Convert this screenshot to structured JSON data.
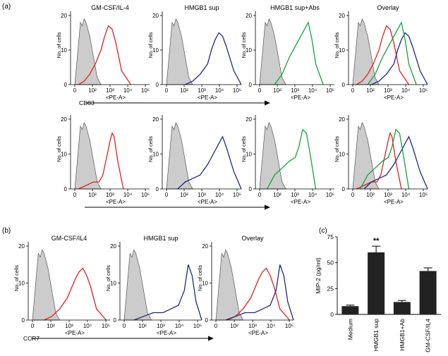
{
  "panel_labels": {
    "a": "(a)",
    "b": "(b)",
    "c": "(c)"
  },
  "colors": {
    "medium": "#e0211f",
    "hmgb1": "#22287a",
    "abs": "#16a23a",
    "control_fill": "#cccccc",
    "control_line": "#555555",
    "bar": "#222222"
  },
  "chart_data": [
    {
      "type": "area",
      "panel": "a-top",
      "xlabel": "<PE-A>",
      "marker": "CD83",
      "xscale": "log",
      "xticks": [
        "0",
        "10²",
        "10³",
        "10⁴",
        "10⁵"
      ],
      "ylabel": "No. of cells",
      "ylim": [
        0,
        20
      ],
      "yticks": [
        "0",
        "10",
        "20"
      ],
      "histograms": [
        {
          "title": "GM-CSF/IL-4",
          "series": [
            {
              "color": "#e0211f",
              "log_x": [
                1.2,
                1.5,
                1.8,
                2.1,
                2.4,
                2.6,
                2.8,
                3.0,
                3.2,
                3.5,
                4.0
              ],
              "counts": [
                0,
                1,
                3,
                6,
                10,
                14,
                17,
                16,
                12,
                4,
                0
              ]
            }
          ]
        },
        {
          "title": "HMGB1 sup",
          "series": [
            {
              "color": "#22287a",
              "log_x": [
                2.0,
                2.4,
                2.8,
                3.2,
                3.4,
                3.6,
                3.8,
                4.0,
                4.2,
                4.6,
                5.0
              ],
              "counts": [
                0,
                1,
                3,
                6,
                10,
                13,
                15,
                14,
                11,
                4,
                0
              ]
            }
          ]
        },
        {
          "title": "HMGB1 sup+Abs",
          "series": [
            {
              "color": "#16a23a",
              "log_x": [
                1.8,
                2.2,
                2.6,
                3.0,
                3.2,
                3.4,
                3.6,
                3.8,
                4.0,
                4.4
              ],
              "counts": [
                0,
                3,
                8,
                12,
                14,
                16,
                18,
                13,
                6,
                0
              ]
            }
          ]
        },
        {
          "title": "Overlay",
          "series": [
            {
              "color": "#e0211f",
              "log_x": [
                1.2,
                1.5,
                1.8,
                2.1,
                2.4,
                2.6,
                2.8,
                3.0,
                3.2,
                3.5,
                4.0
              ],
              "counts": [
                0,
                1,
                3,
                6,
                10,
                14,
                17,
                16,
                12,
                4,
                0
              ]
            },
            {
              "color": "#22287a",
              "log_x": [
                2.0,
                2.4,
                2.8,
                3.2,
                3.4,
                3.6,
                3.8,
                4.0,
                4.2,
                4.6,
                5.0
              ],
              "counts": [
                0,
                1,
                3,
                6,
                10,
                13,
                15,
                14,
                11,
                4,
                0
              ]
            },
            {
              "color": "#16a23a",
              "log_x": [
                1.8,
                2.2,
                2.6,
                3.0,
                3.2,
                3.4,
                3.6,
                3.8,
                4.0,
                4.4
              ],
              "counts": [
                0,
                3,
                8,
                12,
                14,
                16,
                18,
                13,
                6,
                0
              ]
            }
          ]
        }
      ]
    },
    {
      "type": "area",
      "panel": "a-bottom",
      "xlabel": "<PE-A>",
      "xscale": "log",
      "xticks": [
        "0",
        "10²",
        "10³",
        "10⁴",
        "10⁵"
      ],
      "ylabel": "No. of cells",
      "ylim": [
        0,
        20
      ],
      "yticks": [
        "0",
        "10",
        "20"
      ],
      "histograms": [
        {
          "title": "",
          "series": [
            {
              "color": "#e0211f",
              "log_x": [
                1.2,
                1.6,
                2.0,
                2.3,
                2.5,
                2.7,
                2.9,
                3.0,
                3.1,
                3.3,
                3.6
              ],
              "counts": [
                0,
                1,
                2,
                2,
                4,
                9,
                14,
                16,
                15,
                8,
                0
              ]
            }
          ]
        },
        {
          "title": "",
          "series": [
            {
              "color": "#22287a",
              "log_x": [
                1.6,
                2.0,
                2.4,
                2.8,
                3.2,
                3.5,
                3.8,
                4.0,
                4.2,
                4.6,
                5.0
              ],
              "counts": [
                0,
                2,
                3,
                4,
                7,
                10,
                13,
                15,
                12,
                5,
                0
              ]
            }
          ]
        },
        {
          "title": "",
          "series": [
            {
              "color": "#16a23a",
              "log_x": [
                1.4,
                1.8,
                2.2,
                2.6,
                2.9,
                3.1,
                3.3,
                3.5,
                3.7,
                4.0
              ],
              "counts": [
                0,
                4,
                6,
                8,
                9,
                12,
                17,
                16,
                10,
                0
              ]
            }
          ]
        },
        {
          "title": "",
          "series": [
            {
              "color": "#e0211f",
              "log_x": [
                1.2,
                1.6,
                2.0,
                2.3,
                2.5,
                2.7,
                2.9,
                3.0,
                3.1,
                3.3,
                3.6
              ],
              "counts": [
                0,
                1,
                2,
                2,
                4,
                9,
                14,
                16,
                15,
                8,
                0
              ]
            },
            {
              "color": "#22287a",
              "log_x": [
                1.6,
                2.0,
                2.4,
                2.8,
                3.2,
                3.5,
                3.8,
                4.0,
                4.2,
                4.6,
                5.0
              ],
              "counts": [
                0,
                2,
                3,
                4,
                7,
                10,
                13,
                15,
                12,
                5,
                0
              ]
            },
            {
              "color": "#16a23a",
              "log_x": [
                1.4,
                1.8,
                2.2,
                2.6,
                2.9,
                3.1,
                3.3,
                3.5,
                3.7,
                4.0
              ],
              "counts": [
                0,
                4,
                6,
                8,
                9,
                12,
                17,
                16,
                10,
                0
              ]
            }
          ]
        }
      ]
    },
    {
      "type": "area",
      "panel": "b",
      "xlabel": "<PE-A>",
      "marker": "CCR7",
      "xscale": "log",
      "xticks": [
        "0",
        "10²",
        "10³",
        "10⁴",
        "10⁵"
      ],
      "ylabel": "No. of cells",
      "ylim": [
        0,
        20
      ],
      "yticks": [
        "0",
        "10",
        "20"
      ],
      "histograms": [
        {
          "title": "GM-CSF/IL4",
          "series": [
            {
              "color": "#e0211f",
              "log_x": [
                1.6,
                2.0,
                2.4,
                2.8,
                3.2,
                3.4,
                3.6,
                3.8,
                4.0,
                4.3,
                4.8
              ],
              "counts": [
                0,
                1,
                3,
                6,
                11,
                13,
                14,
                12,
                9,
                3,
                0
              ]
            }
          ]
        },
        {
          "title": "HMGB1 sup",
          "series": [
            {
              "color": "#22287a",
              "log_x": [
                1.5,
                2.0,
                2.5,
                3.0,
                3.4,
                3.8,
                4.1,
                4.3,
                4.5,
                4.7,
                5.0
              ],
              "counts": [
                0,
                1,
                2,
                2,
                3,
                4,
                8,
                15,
                12,
                5,
                0
              ]
            }
          ]
        },
        {
          "title": "Overlay",
          "series": [
            {
              "color": "#e0211f",
              "log_x": [
                1.6,
                2.0,
                2.4,
                2.8,
                3.2,
                3.4,
                3.6,
                3.8,
                4.0,
                4.3,
                4.8
              ],
              "counts": [
                0,
                1,
                3,
                6,
                11,
                13,
                14,
                12,
                9,
                3,
                0
              ]
            },
            {
              "color": "#22287a",
              "log_x": [
                1.5,
                2.0,
                2.5,
                3.0,
                3.4,
                3.8,
                4.1,
                4.3,
                4.5,
                4.7,
                5.0
              ],
              "counts": [
                0,
                1,
                2,
                2,
                3,
                4,
                8,
                15,
                12,
                5,
                0
              ]
            }
          ]
        }
      ]
    },
    {
      "type": "bar",
      "panel": "c",
      "categories": [
        "Medium",
        "HMGB1 sup",
        "HMGB1+Ab",
        "GM-CSF/IL4"
      ],
      "values": [
        8,
        60,
        12,
        42
      ],
      "errors": [
        1,
        6,
        1.5,
        3
      ],
      "ylabel": "MIP-2 (pg/ml)",
      "ylim": [
        0,
        75
      ],
      "yticks": [
        0,
        25,
        50,
        75
      ],
      "annotations": [
        {
          "category": "HMGB1 sup",
          "text": "**"
        }
      ]
    }
  ],
  "control_histogram": {
    "log_x": [
      1.0,
      1.1,
      1.2,
      1.3,
      1.4,
      1.5,
      1.6,
      1.7,
      1.8,
      1.9,
      2.0,
      2.1,
      2.2,
      2.4
    ],
    "counts": [
      0,
      6,
      12,
      18,
      17,
      19,
      18,
      16,
      14,
      11,
      8,
      5,
      2,
      0
    ]
  }
}
